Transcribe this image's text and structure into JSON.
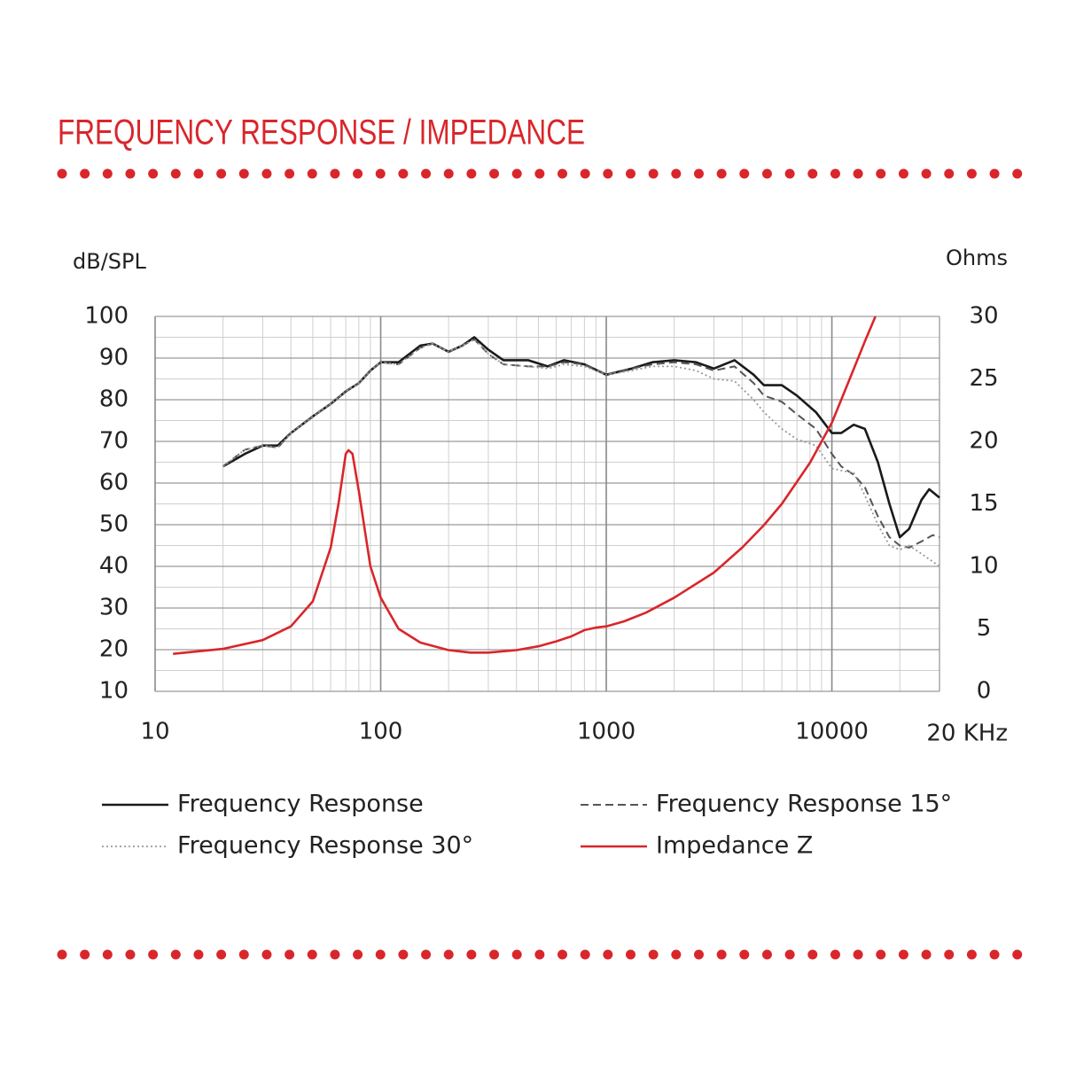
{
  "chart_data": {
    "type": "line",
    "title": "FREQUENCY RESPONSE / IMPEDANCE",
    "ylabel": "dB/SPL",
    "y2label": "Ohms",
    "xlabel": "20 KHz",
    "xscale": "log",
    "xlim": [
      10,
      30000
    ],
    "xticks": [
      10,
      100,
      1000,
      10000
    ],
    "ylim": [
      10,
      100
    ],
    "yticks": [
      10,
      20,
      30,
      40,
      50,
      60,
      70,
      80,
      90,
      100
    ],
    "y2lim": [
      0,
      30
    ],
    "y2ticks": [
      0,
      5,
      10,
      15,
      20,
      25,
      30
    ],
    "grid": true,
    "minor_grid": true,
    "series": [
      {
        "name": "Frequency Response",
        "color": "#1a1a1a",
        "dash": "solid",
        "x": [
          20,
          25,
          30,
          35,
          40,
          50,
          60,
          70,
          80,
          90,
          100,
          120,
          150,
          170,
          200,
          230,
          260,
          300,
          350,
          450,
          550,
          650,
          800,
          1000,
          1300,
          1600,
          2000,
          2500,
          3000,
          3700,
          4500,
          5000,
          6000,
          7000,
          8500,
          10000,
          11000,
          12500,
          14000,
          16000,
          18000,
          20000,
          22000,
          25000,
          27000,
          30000
        ],
        "values": [
          64,
          67,
          69,
          69,
          72,
          76,
          79,
          82,
          84,
          87,
          89,
          89,
          93,
          93.5,
          91.5,
          93,
          95,
          92,
          89.5,
          89.5,
          88,
          89.5,
          88.5,
          86,
          87.5,
          89,
          89.5,
          89,
          87.5,
          89.5,
          86,
          83.5,
          83.5,
          81,
          77,
          72,
          72,
          74,
          73,
          65,
          55,
          47,
          49,
          56,
          58.5,
          56.5
        ]
      },
      {
        "name": "Frequency Response 15°",
        "color": "#555555",
        "dash": "dashed",
        "x": [
          20,
          25,
          30,
          35,
          40,
          50,
          60,
          70,
          80,
          90,
          100,
          120,
          150,
          170,
          200,
          230,
          260,
          300,
          350,
          450,
          550,
          650,
          800,
          1000,
          1300,
          1600,
          2000,
          2500,
          3000,
          3700,
          4500,
          5000,
          6000,
          7000,
          8500,
          10000,
          11000,
          12500,
          14000,
          16000,
          18000,
          20000,
          22000,
          25000,
          28000,
          30000
        ],
        "values": [
          64,
          68,
          69,
          68.5,
          72,
          76,
          79,
          82,
          84,
          87,
          89,
          88.5,
          92.5,
          93.5,
          91.5,
          93,
          94.5,
          91,
          88.5,
          88,
          88,
          89,
          88.5,
          86,
          87.5,
          88.5,
          89,
          88.5,
          87,
          88,
          84,
          81,
          79.5,
          76.5,
          73,
          67,
          64,
          62,
          59,
          52,
          47,
          45,
          44.5,
          46,
          47.5,
          47
        ]
      },
      {
        "name": "Frequency Response 30°",
        "color": "#999999",
        "dash": "dotted",
        "x": [
          20,
          25,
          30,
          35,
          40,
          50,
          60,
          70,
          80,
          90,
          100,
          120,
          150,
          170,
          200,
          230,
          260,
          300,
          350,
          450,
          550,
          650,
          800,
          1000,
          1300,
          1600,
          2000,
          2500,
          3000,
          3700,
          4500,
          5000,
          6000,
          7000,
          8500,
          10000,
          11000,
          12500,
          14000,
          16000,
          18000,
          20000,
          22000,
          25000,
          30000
        ],
        "values": [
          64,
          68,
          69,
          68.5,
          72,
          76,
          79,
          82,
          84,
          87,
          89,
          88.5,
          92.5,
          93.5,
          91.5,
          93,
          94.5,
          91,
          88.5,
          88,
          87.5,
          88.5,
          88,
          86,
          87,
          88,
          88,
          87,
          85,
          84.5,
          80,
          77,
          73,
          70.5,
          69,
          63.5,
          63,
          62.5,
          57,
          50,
          45,
          44,
          45,
          43,
          40
        ]
      },
      {
        "name": "Impedance Z",
        "color": "#d9262b",
        "dash": "solid",
        "axis": "y2",
        "x": [
          12,
          20,
          30,
          40,
          50,
          60,
          65,
          70,
          72,
          75,
          80,
          90,
          100,
          120,
          150,
          200,
          250,
          300,
          400,
          500,
          600,
          700,
          800,
          900,
          1000,
          1200,
          1500,
          2000,
          3000,
          4000,
          5000,
          6000,
          8000,
          10000,
          12000,
          14000,
          15600
        ],
        "values": [
          3.0,
          3.4,
          4.1,
          5.2,
          7.2,
          11.5,
          15,
          19,
          19.3,
          19,
          16,
          10,
          7.5,
          5,
          3.9,
          3.3,
          3.1,
          3.1,
          3.3,
          3.6,
          4.0,
          4.4,
          4.9,
          5.1,
          5.2,
          5.6,
          6.3,
          7.5,
          9.5,
          11.5,
          13.3,
          15,
          18.3,
          21.5,
          25,
          28,
          30
        ]
      }
    ]
  }
}
